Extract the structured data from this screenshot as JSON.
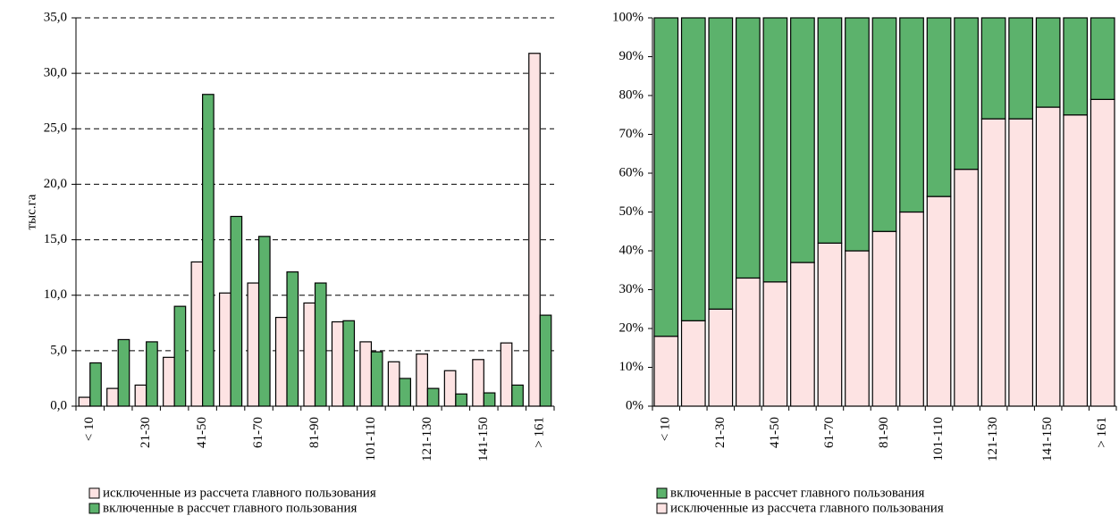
{
  "chart_data": [
    {
      "type": "bar",
      "y_label": "тыс.га",
      "categories": [
        "< 10",
        null,
        "21-30",
        null,
        "41-50",
        null,
        "61-70",
        null,
        "81-90",
        null,
        "101-110",
        null,
        "121-130",
        null,
        "141-150",
        null,
        "> 161"
      ],
      "series": [
        {
          "name": "исключенные из рассчета главного пользования",
          "color": "#fde3e3",
          "values": [
            0.8,
            1.6,
            1.9,
            4.4,
            13.0,
            10.2,
            11.1,
            8.0,
            9.3,
            7.6,
            5.8,
            4.0,
            4.7,
            3.2,
            4.2,
            5.7,
            31.8
          ]
        },
        {
          "name": "включенные в рассчет главного пользования",
          "color": "#5cb26c",
          "values": [
            3.9,
            6.0,
            5.8,
            9.0,
            28.1,
            17.1,
            15.3,
            12.1,
            11.1,
            7.7,
            4.9,
            2.5,
            1.6,
            1.1,
            1.2,
            1.9,
            8.2
          ]
        }
      ],
      "ylim": [
        0,
        35
      ],
      "yticks": [
        {
          "value": 0,
          "label": "0,0"
        },
        {
          "value": 5,
          "label": "5,0"
        },
        {
          "value": 10,
          "label": "10,0"
        },
        {
          "value": 15,
          "label": "15,0"
        },
        {
          "value": 20,
          "label": "20,0"
        },
        {
          "value": 25,
          "label": "25,0"
        },
        {
          "value": 30,
          "label": "30,0"
        },
        {
          "value": 35,
          "label": "35,0"
        }
      ],
      "grid": true
    },
    {
      "type": "stacked_bar",
      "categories": [
        "< 10",
        null,
        "21-30",
        null,
        "41-50",
        null,
        "61-70",
        null,
        "81-90",
        null,
        "101-110",
        null,
        "121-130",
        null,
        "141-150",
        null,
        "> 161"
      ],
      "series": [
        {
          "name": "включенные в рассчет главного пользования",
          "color": "#5cb26c",
          "values": [
            82,
            78,
            75,
            67,
            68,
            63,
            58,
            60,
            55,
            50,
            46,
            39,
            26,
            26,
            23,
            25,
            21
          ]
        },
        {
          "name": "исключенные из рассчета главного пользования",
          "color": "#fde3e3",
          "values": [
            18,
            22,
            25,
            33,
            32,
            37,
            42,
            40,
            45,
            50,
            54,
            61,
            74,
            74,
            77,
            75,
            79
          ]
        }
      ],
      "ylim": [
        0,
        100
      ],
      "yticks": [
        {
          "value": 0,
          "label": "0%"
        },
        {
          "value": 10,
          "label": "10%"
        },
        {
          "value": 20,
          "label": "20%"
        },
        {
          "value": 30,
          "label": "30%"
        },
        {
          "value": 40,
          "label": "40%"
        },
        {
          "value": 50,
          "label": "50%"
        },
        {
          "value": 60,
          "label": "60%"
        },
        {
          "value": 70,
          "label": "70%"
        },
        {
          "value": 80,
          "label": "80%"
        },
        {
          "value": 90,
          "label": "90%"
        },
        {
          "value": 100,
          "label": "100%"
        }
      ],
      "grid": false
    }
  ]
}
